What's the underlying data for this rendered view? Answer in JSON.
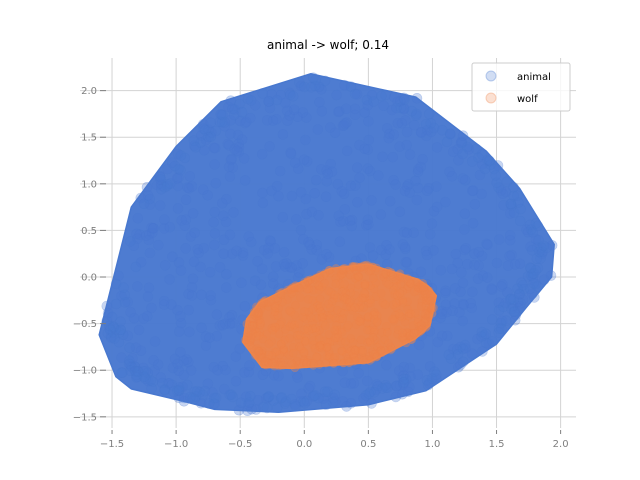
{
  "chart_data": {
    "type": "scatter",
    "title": "animal -> wolf; 0.14",
    "xlabel": "",
    "ylabel": "",
    "xlim": [
      -1.75,
      2.12
    ],
    "ylim": [
      -1.62,
      2.35
    ],
    "xticks": [
      -1.5,
      -1.0,
      -0.5,
      0.0,
      0.5,
      1.0,
      1.5,
      2.0
    ],
    "xtick_labels": [
      "−1.5",
      "−1.0",
      "−0.5",
      "0.0",
      "0.5",
      "1.0",
      "1.5",
      "2.0"
    ],
    "yticks": [
      -1.5,
      -1.0,
      -0.5,
      0.0,
      0.5,
      1.0,
      1.5,
      2.0
    ],
    "ytick_labels": [
      "−1.5",
      "−1.0",
      "−0.5",
      "0.0",
      "0.5",
      "1.0",
      "1.5",
      "2.0"
    ],
    "grid": true,
    "legend_position": "top-right",
    "series": [
      {
        "name": "animal",
        "color": "#4878cf",
        "hull": [
          [
            -1.6,
            -0.62
          ],
          [
            -1.47,
            -1.07
          ],
          [
            -1.35,
            -1.2
          ],
          [
            -0.95,
            -1.33
          ],
          [
            -0.7,
            -1.42
          ],
          [
            -0.2,
            -1.45
          ],
          [
            0.5,
            -1.37
          ],
          [
            0.95,
            -1.22
          ],
          [
            1.5,
            -0.72
          ],
          [
            1.73,
            -0.33
          ],
          [
            1.93,
            0.0
          ],
          [
            1.95,
            0.35
          ],
          [
            1.68,
            0.95
          ],
          [
            1.42,
            1.35
          ],
          [
            0.87,
            1.93
          ],
          [
            0.05,
            2.18
          ],
          [
            -0.65,
            1.88
          ],
          [
            -1.0,
            1.4
          ],
          [
            -1.35,
            0.75
          ]
        ],
        "density": "dense point cloud filling the hull"
      },
      {
        "name": "wolf",
        "color": "#ee854a",
        "hull": [
          [
            -0.48,
            -0.7
          ],
          [
            -0.33,
            -0.97
          ],
          [
            -0.1,
            -0.98
          ],
          [
            0.5,
            -0.92
          ],
          [
            0.87,
            -0.66
          ],
          [
            0.98,
            -0.52
          ],
          [
            1.03,
            -0.2
          ],
          [
            0.97,
            -0.1
          ],
          [
            0.88,
            -0.02
          ],
          [
            0.5,
            0.14
          ],
          [
            0.2,
            0.09
          ],
          [
            -0.1,
            -0.1
          ],
          [
            -0.35,
            -0.27
          ],
          [
            -0.45,
            -0.45
          ]
        ],
        "density": "dense point cloud filling the hull"
      }
    ]
  }
}
